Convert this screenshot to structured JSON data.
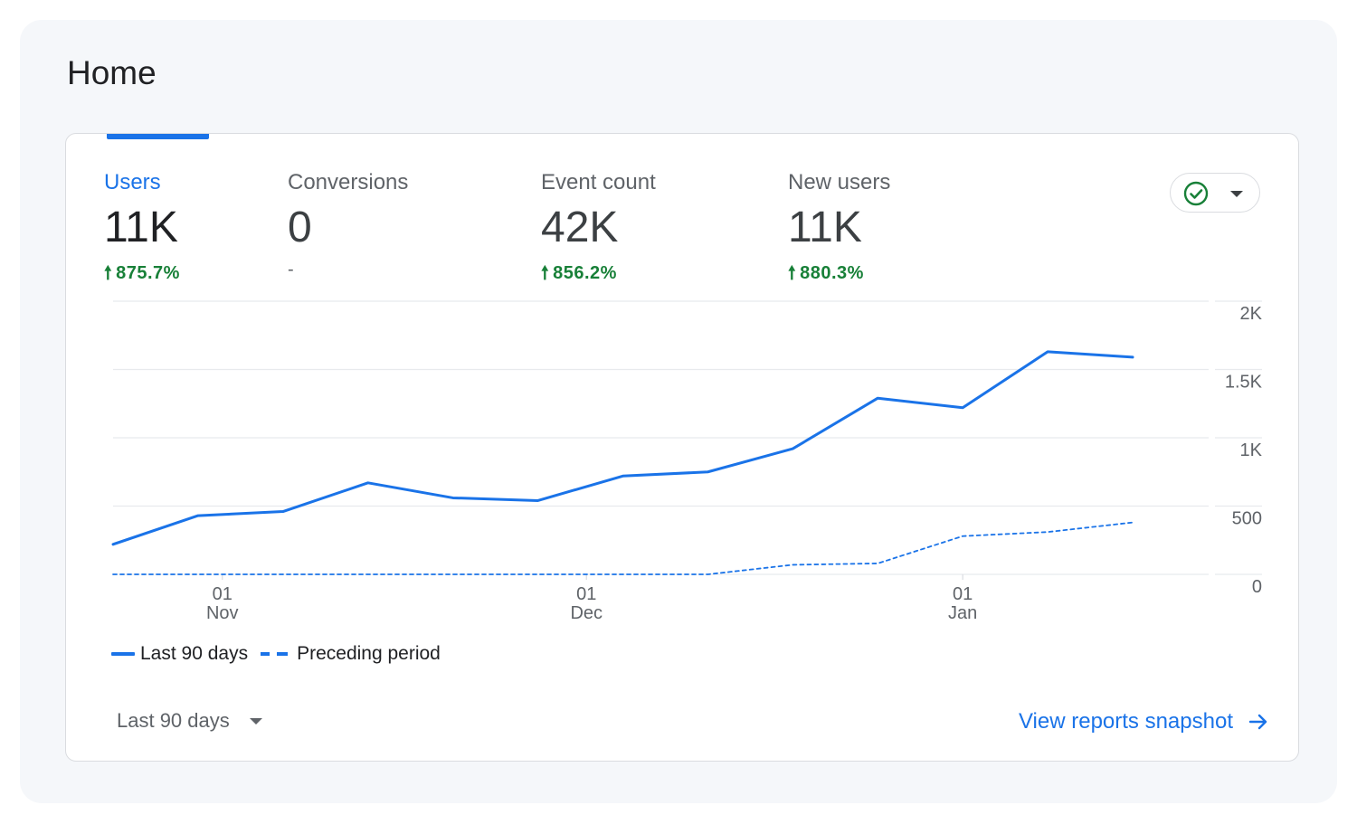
{
  "page": {
    "title": "Home"
  },
  "metrics": [
    {
      "label": "Users",
      "value": "11K",
      "change": "875.7%",
      "direction": "up"
    },
    {
      "label": "Conversions",
      "value": "0",
      "change": "-",
      "direction": "none"
    },
    {
      "label": "Event count",
      "value": "42K",
      "change": "856.2%",
      "direction": "up"
    },
    {
      "label": "New users",
      "value": "11K",
      "change": "880.3%",
      "direction": "up"
    }
  ],
  "icons": {
    "up_arrow": "🠕",
    "status": "check-circle-icon",
    "dropdown": "chevron-down-icon",
    "link_arrow": "arrow-right-icon"
  },
  "colors": {
    "accent": "#1a73e8",
    "positive": "#188038"
  },
  "legend": {
    "series1": "Last 90 days",
    "series2": "Preceding period"
  },
  "footer": {
    "range_label": "Last 90 days",
    "view_link": "View reports snapshot"
  },
  "chart_data": {
    "type": "line",
    "title": "",
    "xlabel": "",
    "ylabel": "",
    "ylim": [
      0,
      2000
    ],
    "y_ticks": [
      {
        "value": 0,
        "label": "0"
      },
      {
        "value": 500,
        "label": "500"
      },
      {
        "value": 1000,
        "label": "1K"
      },
      {
        "value": 1500,
        "label": "1.5K"
      },
      {
        "value": 2000,
        "label": "2K"
      }
    ],
    "x_ticks": [
      {
        "date": "2022-11-01",
        "day": "01",
        "month": "Nov"
      },
      {
        "date": "2022-12-01",
        "day": "01",
        "month": "Dec"
      },
      {
        "date": "2023-01-01",
        "day": "01",
        "month": "Jan"
      }
    ],
    "x": [
      "2022-10-23",
      "2022-10-30",
      "2022-11-06",
      "2022-11-13",
      "2022-11-20",
      "2022-11-27",
      "2022-12-04",
      "2022-12-11",
      "2022-12-18",
      "2022-12-25",
      "2023-01-01",
      "2023-01-08",
      "2023-01-15"
    ],
    "series": [
      {
        "name": "Last 90 days",
        "style": "solid",
        "values": [
          220,
          430,
          460,
          670,
          560,
          540,
          720,
          750,
          920,
          1290,
          1220,
          1630,
          1590
        ]
      },
      {
        "name": "Preceding period",
        "style": "dashed",
        "values": [
          0,
          0,
          0,
          0,
          0,
          0,
          0,
          0,
          70,
          80,
          280,
          310,
          380
        ]
      }
    ],
    "grid": true,
    "legend_position": "bottom-left"
  }
}
